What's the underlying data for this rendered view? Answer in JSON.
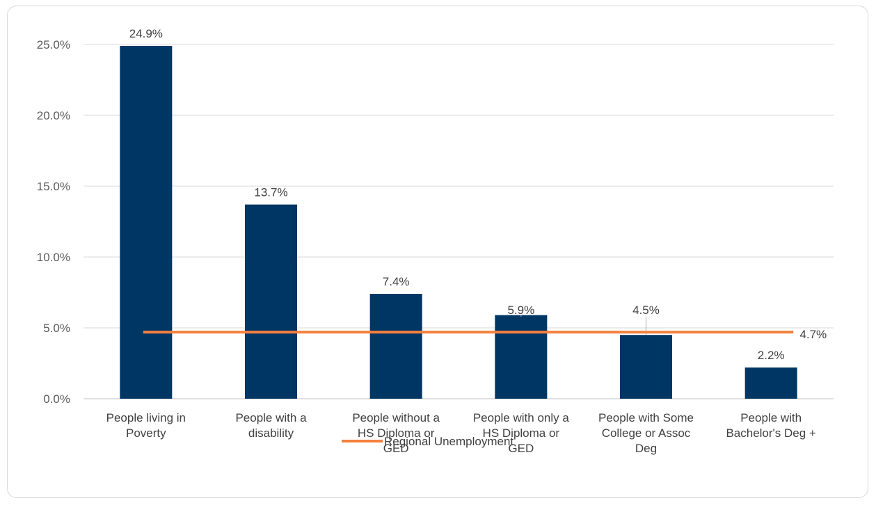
{
  "chart_data": {
    "type": "bar",
    "categories": [
      [
        "People living in",
        "Poverty"
      ],
      [
        "People with a",
        "disability"
      ],
      [
        "People without a",
        "HS Diploma or",
        "GED"
      ],
      [
        "People with only a",
        "HS Diploma or",
        "GED"
      ],
      [
        "People with Some",
        "College or Assoc",
        "Deg"
      ],
      [
        "People with",
        "Bachelor's Deg +"
      ]
    ],
    "values": [
      24.9,
      13.7,
      7.4,
      5.9,
      4.5,
      2.2
    ],
    "value_labels": [
      "24.9%",
      "13.7%",
      "7.4%",
      "5.9%",
      "4.5%",
      "2.2%"
    ],
    "ylim": [
      0,
      25
    ],
    "yticks": [
      0,
      5,
      10,
      15,
      20,
      25
    ],
    "ytick_labels": [
      "0.0%",
      "5.0%",
      "10.0%",
      "15.0%",
      "20.0%",
      "25.0%"
    ],
    "grid": true,
    "reference_line": {
      "name": "Regional Unemployment",
      "value": 4.7,
      "label": "4.7%",
      "color": "#f5803e"
    },
    "bar_color": "#003663",
    "legend_position": "bottom"
  }
}
